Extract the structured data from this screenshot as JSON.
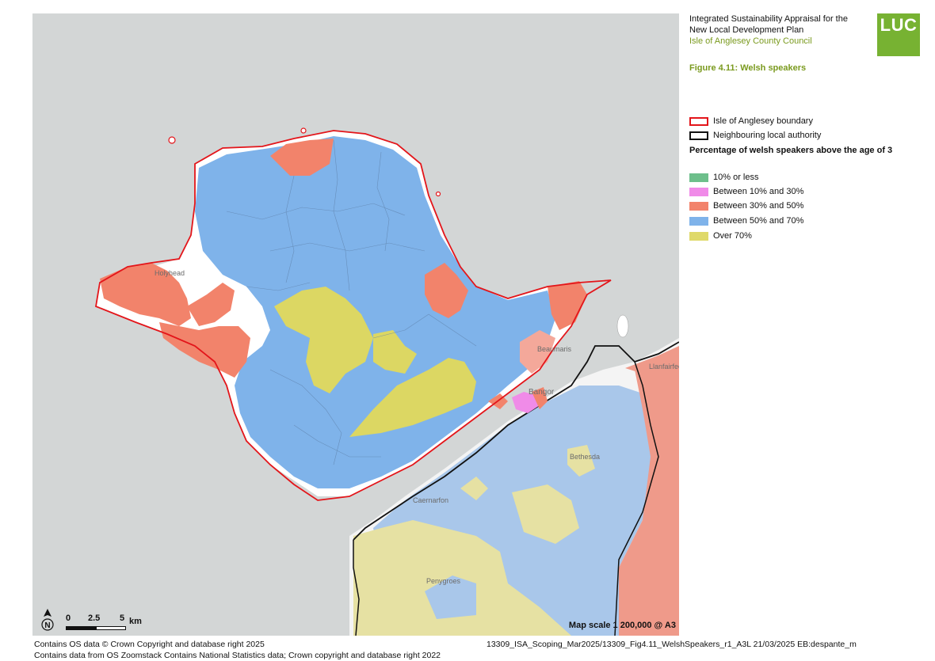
{
  "header": {
    "title_line1": "Integrated Sustainability Appraisal for the",
    "title_line2": "New Local Development Plan",
    "client": "Isle of Anglesey County Council",
    "logo_text": "LUC",
    "figure_title": "Figure 4.11: Welsh speakers"
  },
  "legend": {
    "boundary_items": [
      {
        "label": "Isle of Anglesey boundary",
        "color": "#e3151a"
      },
      {
        "label": "Neighbouring local authority",
        "color": "#111111"
      }
    ],
    "heading": "Percentage of welsh speakers above the age of 3",
    "classes": [
      {
        "label": "10% or less",
        "color": "#6dbf8b"
      },
      {
        "label": "Between 10% and 30%",
        "color": "#f08be8"
      },
      {
        "label": "Between 30% and 50%",
        "color": "#f2836b"
      },
      {
        "label": "Between 50% and 70%",
        "color": "#7fb3ea"
      },
      {
        "label": "Over 70%",
        "color": "#dfd96a"
      }
    ]
  },
  "map": {
    "places": [
      "Holyhead",
      "Beaumaris",
      "Bangor",
      "Llanfairfechan",
      "Bethesda",
      "Caernarfon",
      "Penygroes"
    ],
    "scale_ticks": [
      "0",
      "2.5",
      "5"
    ],
    "scale_unit": "km",
    "map_scale": "Map scale 1 200,000 @ A3"
  },
  "footer": {
    "left_line1": "Contains OS data © Crown Copyright and database right 2025",
    "left_line2": "Contains data from OS Zoomstack Contains National Statistics data; Crown copyright and database right 2022",
    "right": "13309_ISA_Scoping_Mar2025/13309_Fig4.11_WelshSpeakers_r1_A3L 21/03/2025 EB:despante_m"
  }
}
